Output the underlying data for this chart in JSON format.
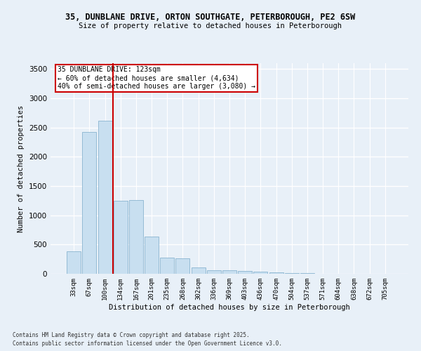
{
  "title_line1": "35, DUNBLANE DRIVE, ORTON SOUTHGATE, PETERBOROUGH, PE2 6SW",
  "title_line2": "Size of property relative to detached houses in Peterborough",
  "xlabel": "Distribution of detached houses by size in Peterborough",
  "ylabel": "Number of detached properties",
  "bar_color": "#c8dff0",
  "bar_edge_color": "#7aaac8",
  "categories": [
    "33sqm",
    "67sqm",
    "100sqm",
    "134sqm",
    "167sqm",
    "201sqm",
    "235sqm",
    "268sqm",
    "302sqm",
    "336sqm",
    "369sqm",
    "403sqm",
    "436sqm",
    "470sqm",
    "504sqm",
    "537sqm",
    "571sqm",
    "604sqm",
    "638sqm",
    "672sqm",
    "705sqm"
  ],
  "values": [
    390,
    2420,
    2620,
    1250,
    1260,
    640,
    280,
    270,
    110,
    60,
    55,
    50,
    35,
    22,
    15,
    8,
    4,
    3,
    2,
    1,
    1
  ],
  "vline_color": "#cc0000",
  "annotation_text": "35 DUNBLANE DRIVE: 123sqm\n← 60% of detached houses are smaller (4,634)\n40% of semi-detached houses are larger (3,080) →",
  "annotation_box_color": "#ffffff",
  "annotation_box_edge": "#cc0000",
  "ylim": [
    0,
    3600
  ],
  "yticks": [
    0,
    500,
    1000,
    1500,
    2000,
    2500,
    3000,
    3500
  ],
  "footer_line1": "Contains HM Land Registry data © Crown copyright and database right 2025.",
  "footer_line2": "Contains public sector information licensed under the Open Government Licence v3.0.",
  "background_color": "#e8f0f8",
  "plot_bg_color": "#e8f0f8",
  "grid_color": "#ffffff"
}
